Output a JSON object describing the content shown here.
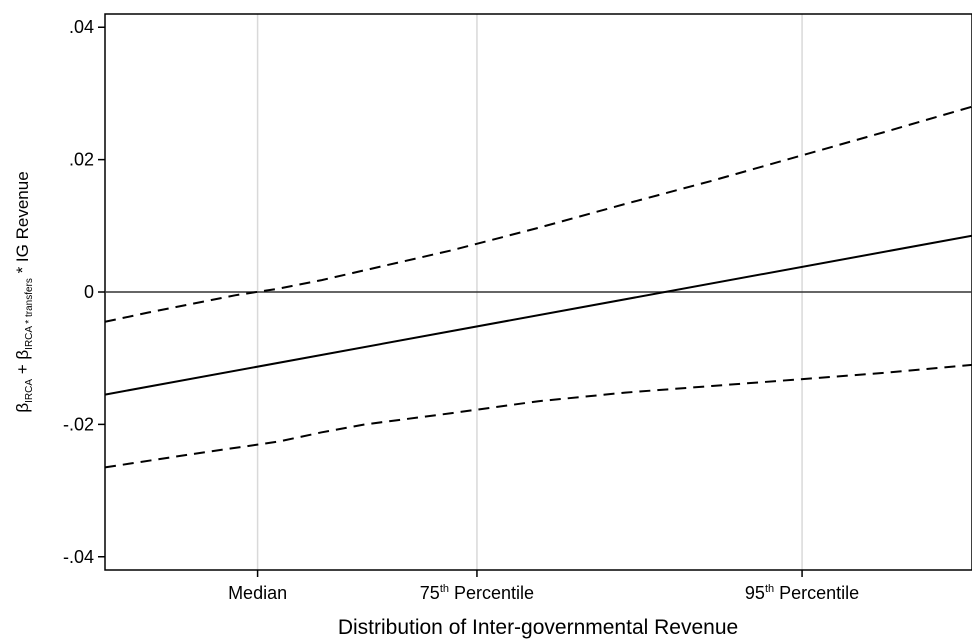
{
  "chart_data": {
    "type": "line",
    "xlabel": "Distribution of Inter-governmental Revenue",
    "ylabel": {
      "p1": "β",
      "p1_sub": "IRCA",
      "p2": " + β",
      "p2_sub": "IRCA * transfers",
      "p3": " * IG Revenue"
    },
    "x_range": [
      0,
      100
    ],
    "ylim": [
      -0.042,
      0.042
    ],
    "y_ticks": [
      {
        "value": 0.04,
        "label": ".04"
      },
      {
        "value": 0.02,
        "label": ".02"
      },
      {
        "value": 0,
        "label": "0"
      },
      {
        "value": -0.02,
        "label": "-.02"
      },
      {
        "value": -0.04,
        "label": "-.04"
      }
    ],
    "x_ticks": [
      {
        "pos": 17.6,
        "base": "Median",
        "sup": ""
      },
      {
        "pos": 42.9,
        "base": "75",
        "sup": "th",
        "rest": " Percentile"
      },
      {
        "pos": 80.4,
        "base": "95",
        "sup": "th",
        "rest": " Percentile"
      }
    ],
    "grid": "vertical",
    "reference_line_y": 0,
    "series": [
      {
        "style": "solid",
        "x": [
          0,
          100
        ],
        "y": [
          -0.0155,
          0.0085
        ]
      },
      {
        "style": "dashed",
        "x": [
          0,
          5,
          10,
          15,
          20,
          25,
          30,
          40,
          50,
          60,
          70,
          80,
          90,
          100
        ],
        "y": [
          -0.0045,
          -0.0031,
          -0.0018,
          -0.0005,
          0.0005,
          0.0018,
          0.0033,
          0.0063,
          0.0097,
          0.0133,
          0.0168,
          0.0205,
          0.0242,
          0.028
        ]
      },
      {
        "style": "dashed",
        "x": [
          0,
          10,
          20,
          25,
          30,
          40,
          50,
          60,
          70,
          80,
          90,
          100
        ],
        "y": [
          -0.0265,
          -0.0245,
          -0.0226,
          -0.0212,
          -0.02,
          -0.0183,
          -0.0165,
          -0.0152,
          -0.0142,
          -0.0132,
          -0.0122,
          -0.011
        ]
      }
    ]
  }
}
